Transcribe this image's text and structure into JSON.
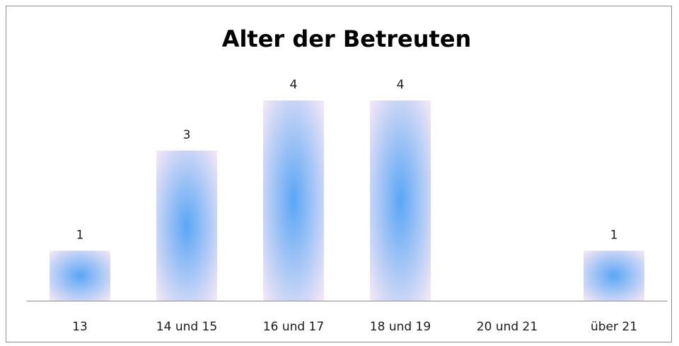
{
  "chart_data": {
    "type": "bar",
    "title": "Alter der Betreuten",
    "categories": [
      "13",
      "14 und 15",
      "16 und 17",
      "18 und 19",
      "20 und 21",
      "über 21"
    ],
    "values": [
      1,
      3,
      4,
      4,
      null,
      1
    ],
    "color": "#5aa6f5",
    "edge_color": "#f6e8f6"
  }
}
